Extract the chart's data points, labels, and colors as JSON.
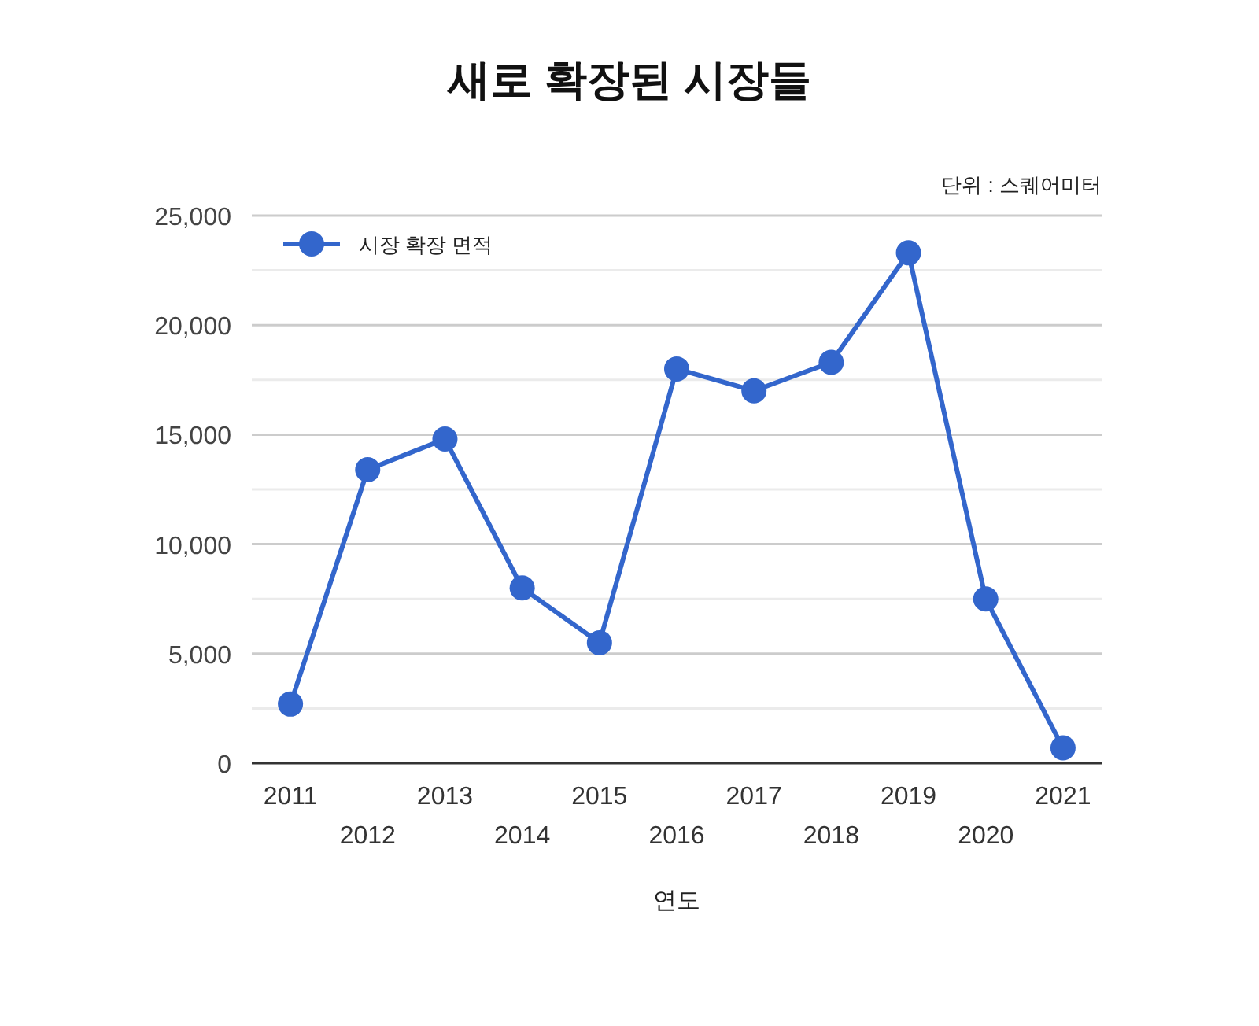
{
  "chart_data": {
    "type": "line",
    "title": "새로 확장된 시장들",
    "annotations": [
      "단위 : 스퀘어미터"
    ],
    "xlabel": "연도",
    "categories": [
      "2011",
      "2012",
      "2013",
      "2014",
      "2015",
      "2016",
      "2017",
      "2018",
      "2019",
      "2020",
      "2021"
    ],
    "series": [
      {
        "name": "시장 확장 면적",
        "color": "#3366cc",
        "values": [
          2700,
          13400,
          14800,
          8000,
          5500,
          18000,
          17000,
          18300,
          23300,
          7500,
          700
        ]
      }
    ],
    "ylim": [
      0,
      25000
    ],
    "yticks": [
      0,
      {
        "value": 2500,
        "label": null
      },
      {
        "value": 5000,
        "label": "5,000"
      },
      {
        "value": 7500,
        "label": null
      },
      {
        "value": 10000,
        "label": "10,000"
      },
      {
        "value": 12500,
        "label": null
      },
      {
        "value": 15000,
        "label": "15,000"
      },
      {
        "value": 17500,
        "label": null
      },
      {
        "value": 20000,
        "label": "20,000"
      },
      {
        "value": 22500,
        "label": null
      },
      {
        "value": 25000,
        "label": "25,000"
      }
    ],
    "grid": "y",
    "legend": "top left",
    "marker": "circle",
    "line_style": "solid"
  }
}
